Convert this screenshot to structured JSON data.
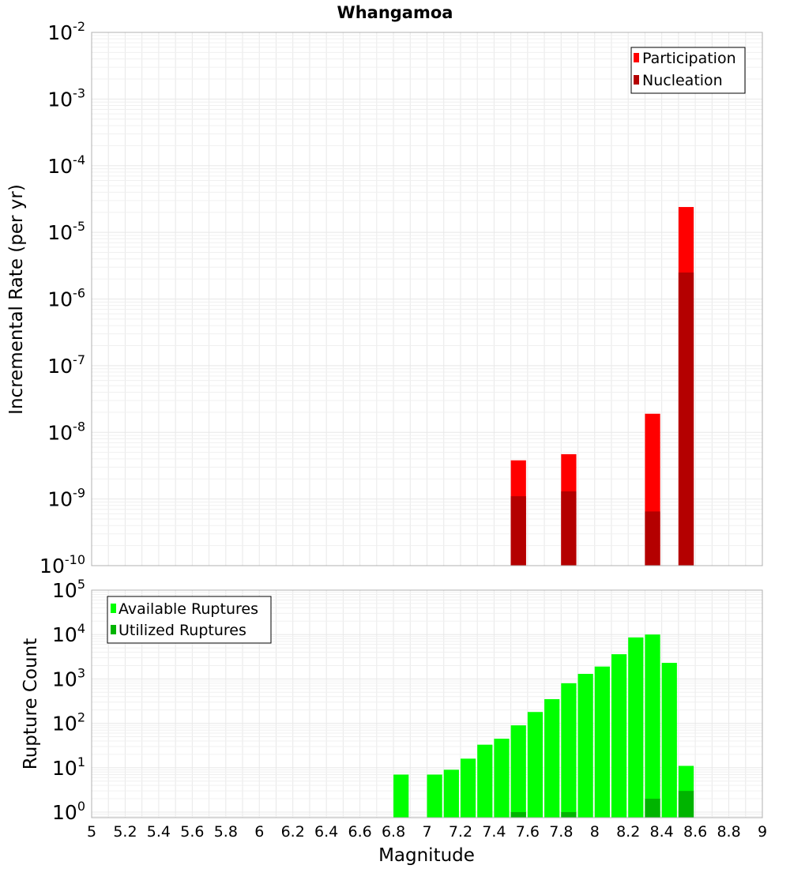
{
  "chart_data": [
    {
      "type": "bar",
      "title": "Whangamoa",
      "ylabel": "Incremental Rate (per yr)",
      "xlabel": "",
      "x_scale": "linear",
      "y_scale": "log",
      "xlim": [
        5,
        9
      ],
      "ylim": [
        1e-10,
        0.01
      ],
      "y_tick_exponents": [
        "-10",
        "-9",
        "-8",
        "-7",
        "-6",
        "-5",
        "-4",
        "-3",
        "-2"
      ],
      "bar_width": 0.1,
      "legend_position": "top-right",
      "series": [
        {
          "name": "Participation",
          "color": "#ff0000",
          "x": [
            7.55,
            7.85,
            8.35,
            8.55
          ],
          "values": [
            3.8e-09,
            4.7e-09,
            1.9e-08,
            2.4e-05
          ]
        },
        {
          "name": "Nucleation",
          "color": "#b40000",
          "x": [
            7.55,
            7.85,
            8.35,
            8.55
          ],
          "values": [
            1.1e-09,
            1.3e-09,
            6.5e-10,
            2.5e-06
          ]
        }
      ]
    },
    {
      "type": "bar",
      "title": "",
      "ylabel": "Rupture Count",
      "xlabel": "Magnitude",
      "x_scale": "linear",
      "y_scale": "log",
      "xlim": [
        5,
        9
      ],
      "ylim": [
        0.75,
        100000.0
      ],
      "y_tick_exponents": [
        "0",
        "1",
        "2",
        "3",
        "4",
        "5"
      ],
      "x_tick_labels": [
        "5",
        "5.2",
        "5.4",
        "5.6",
        "5.8",
        "6",
        "6.2",
        "6.4",
        "6.6",
        "6.8",
        "7",
        "7.2",
        "7.4",
        "7.6",
        "7.8",
        "8",
        "8.2",
        "8.4",
        "8.6",
        "8.8",
        "9"
      ],
      "bar_width": 0.1,
      "legend_position": "top-left",
      "series": [
        {
          "name": "Available Ruptures",
          "color": "#00ff00",
          "x": [
            6.85,
            7.05,
            7.15,
            7.25,
            7.35,
            7.45,
            7.55,
            7.65,
            7.75,
            7.85,
            7.95,
            8.05,
            8.15,
            8.25,
            8.35,
            8.45,
            8.55
          ],
          "values": [
            7,
            7,
            9,
            16,
            33,
            45,
            90,
            180,
            350,
            800,
            1300,
            1900,
            3600,
            8600,
            10000,
            2300,
            11
          ]
        },
        {
          "name": "Utilized Ruptures",
          "color": "#00b400",
          "x": [
            7.55,
            7.85,
            8.35,
            8.55
          ],
          "values": [
            1,
            1,
            2,
            3
          ]
        }
      ]
    }
  ]
}
